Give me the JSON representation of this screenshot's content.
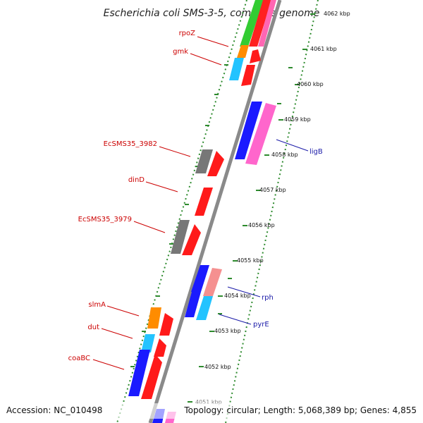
{
  "title": "Escherichia coli SMS-3-5, complete genome",
  "footer": {
    "accession": "Accession: NC_010498",
    "topology": "Topology: circular; Length: 5,068,389 bp; Genes: 4,855"
  },
  "colors": {
    "backbone": "#8a8a8a",
    "ruler": "#2e8b2e",
    "forward_label": "#cc0000",
    "reverse_label": "#1a1aa8"
  },
  "ticks": [
    {
      "kbp": 4062,
      "label": "4062 kbp"
    },
    {
      "kbp": 4061,
      "label": "4061 kbp"
    },
    {
      "kbp": 4060,
      "label": "4060 kbp"
    },
    {
      "kbp": 4059,
      "label": "4059 kbp"
    },
    {
      "kbp": 4058,
      "label": "4058 kbp"
    },
    {
      "kbp": 4057,
      "label": "4057 kbp"
    },
    {
      "kbp": 4056,
      "label": "4056 kbp"
    },
    {
      "kbp": 4055,
      "label": "4055 kbp"
    },
    {
      "kbp": 4054,
      "label": "4054 kbp"
    },
    {
      "kbp": 4053,
      "label": "4053 kbp"
    },
    {
      "kbp": 4052,
      "label": "4052 kbp"
    },
    {
      "kbp": 4051,
      "label": "4051 kbp"
    }
  ],
  "labels": [
    {
      "text": "rpoZ",
      "side": "left"
    },
    {
      "text": "gmk",
      "side": "left"
    },
    {
      "text": "EcSMS35_3982",
      "side": "left"
    },
    {
      "text": "dinD",
      "side": "left"
    },
    {
      "text": "EcSMS35_3979",
      "side": "left"
    },
    {
      "text": "slmA",
      "side": "left"
    },
    {
      "text": "dut",
      "side": "left"
    },
    {
      "text": "coaBC",
      "side": "left"
    },
    {
      "text": "ligB",
      "side": "right"
    },
    {
      "text": "rph",
      "side": "right"
    },
    {
      "text": "pyrE",
      "side": "right"
    }
  ]
}
